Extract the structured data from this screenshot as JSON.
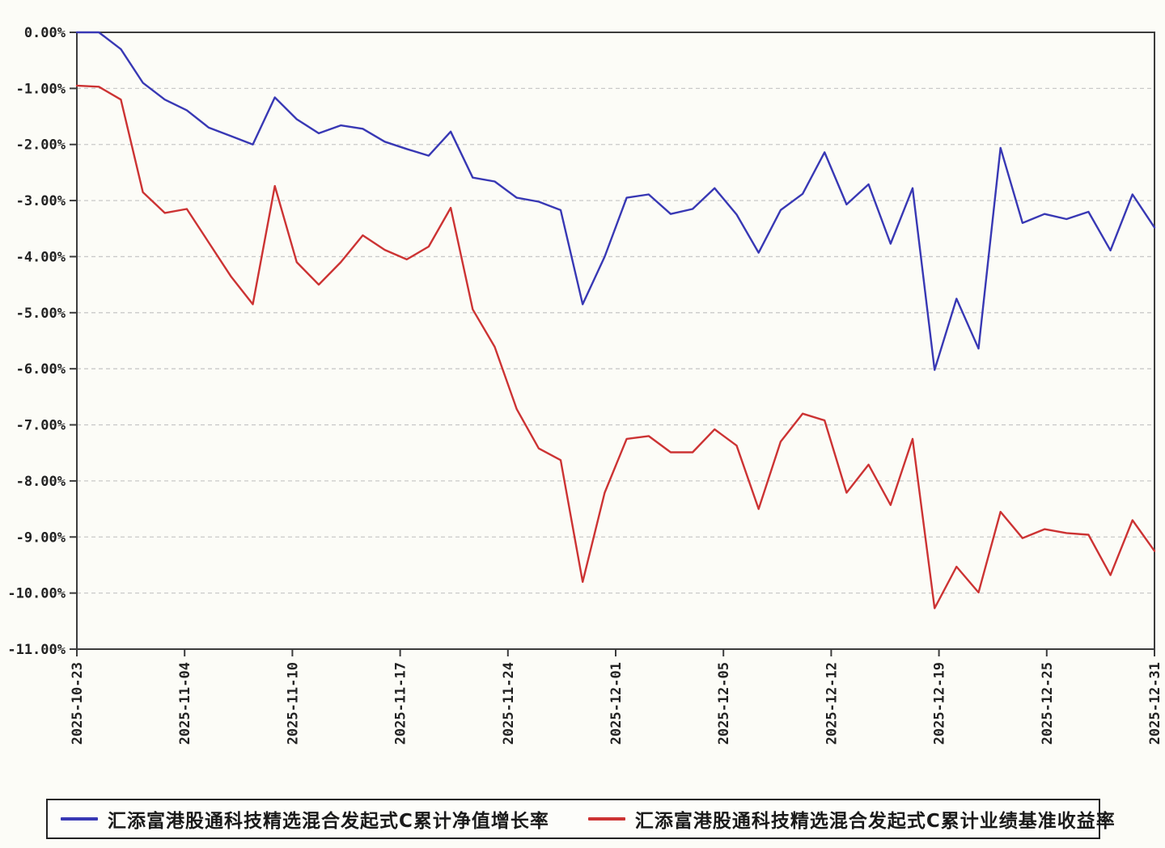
{
  "chart_data": {
    "type": "line",
    "title": "",
    "xlabel": "",
    "ylabel": "",
    "ylim": [
      -11,
      0
    ],
    "y_tick_step": 1,
    "grid": "horizontal-dashed",
    "legend_position": "bottom",
    "y_tick_labels": [
      "0.00%",
      "-1.00%",
      "-2.00%",
      "-3.00%",
      "-4.00%",
      "-5.00%",
      "-6.00%",
      "-7.00%",
      "-8.00%",
      "-9.00%",
      "-10.00%",
      "-11.00%"
    ],
    "x_tick_labels": [
      "2025-10-23",
      "2025-11-04",
      "2025-11-10",
      "2025-11-17",
      "2025-11-24",
      "2025-12-01",
      "2025-12-05",
      "2025-12-12",
      "2025-12-19",
      "2025-12-25",
      "2025-12-31"
    ],
    "series": [
      {
        "id": "cumulative-nav-growth",
        "name": "汇添富港股通科技精选混合发起式C累计净值增长率",
        "color": "#3838b4",
        "values": [
          0.0,
          0.0,
          -0.3,
          -0.9,
          -1.2,
          -1.39,
          -1.7,
          -1.85,
          -2.0,
          -1.16,
          -1.55,
          -1.8,
          -1.66,
          -1.72,
          -1.95,
          -2.08,
          -2.2,
          -1.77,
          -2.59,
          -2.66,
          -2.95,
          -3.02,
          -3.17,
          -4.85,
          -4.0,
          -2.95,
          -2.89,
          -3.24,
          -3.15,
          -2.78,
          -3.25,
          -3.93,
          -3.17,
          -2.88,
          -2.14,
          -3.07,
          -2.71,
          -3.77,
          -2.78,
          -6.02,
          -4.75,
          -5.64,
          -2.06,
          -3.4,
          -3.24,
          -3.33,
          -3.2,
          -3.89,
          -2.89,
          -3.48
        ]
      },
      {
        "id": "benchmark-return",
        "name": "汇添富港股通科技精选混合发起式C累计业绩基准收益率",
        "color": "#cc3333",
        "values": [
          -0.95,
          -0.97,
          -1.2,
          -2.85,
          -3.22,
          -3.15,
          -3.75,
          -4.35,
          -4.85,
          -2.74,
          -4.1,
          -4.5,
          -4.1,
          -3.62,
          -3.88,
          -4.05,
          -3.82,
          -3.13,
          -4.94,
          -5.61,
          -6.72,
          -7.42,
          -7.63,
          -9.8,
          -8.21,
          -7.25,
          -7.2,
          -7.49,
          -7.49,
          -7.08,
          -7.37,
          -8.5,
          -7.3,
          -6.8,
          -6.92,
          -8.21,
          -7.71,
          -8.43,
          -7.25,
          -10.27,
          -9.53,
          -9.99,
          -8.55,
          -9.02,
          -8.86,
          -8.93,
          -8.96,
          -9.68,
          -8.7,
          -9.25
        ]
      }
    ]
  },
  "colors": {
    "axis": "#3c3c3c",
    "gridline": "#c9c9c9",
    "background": "#fcfcf7",
    "tick_text": "#222222"
  }
}
